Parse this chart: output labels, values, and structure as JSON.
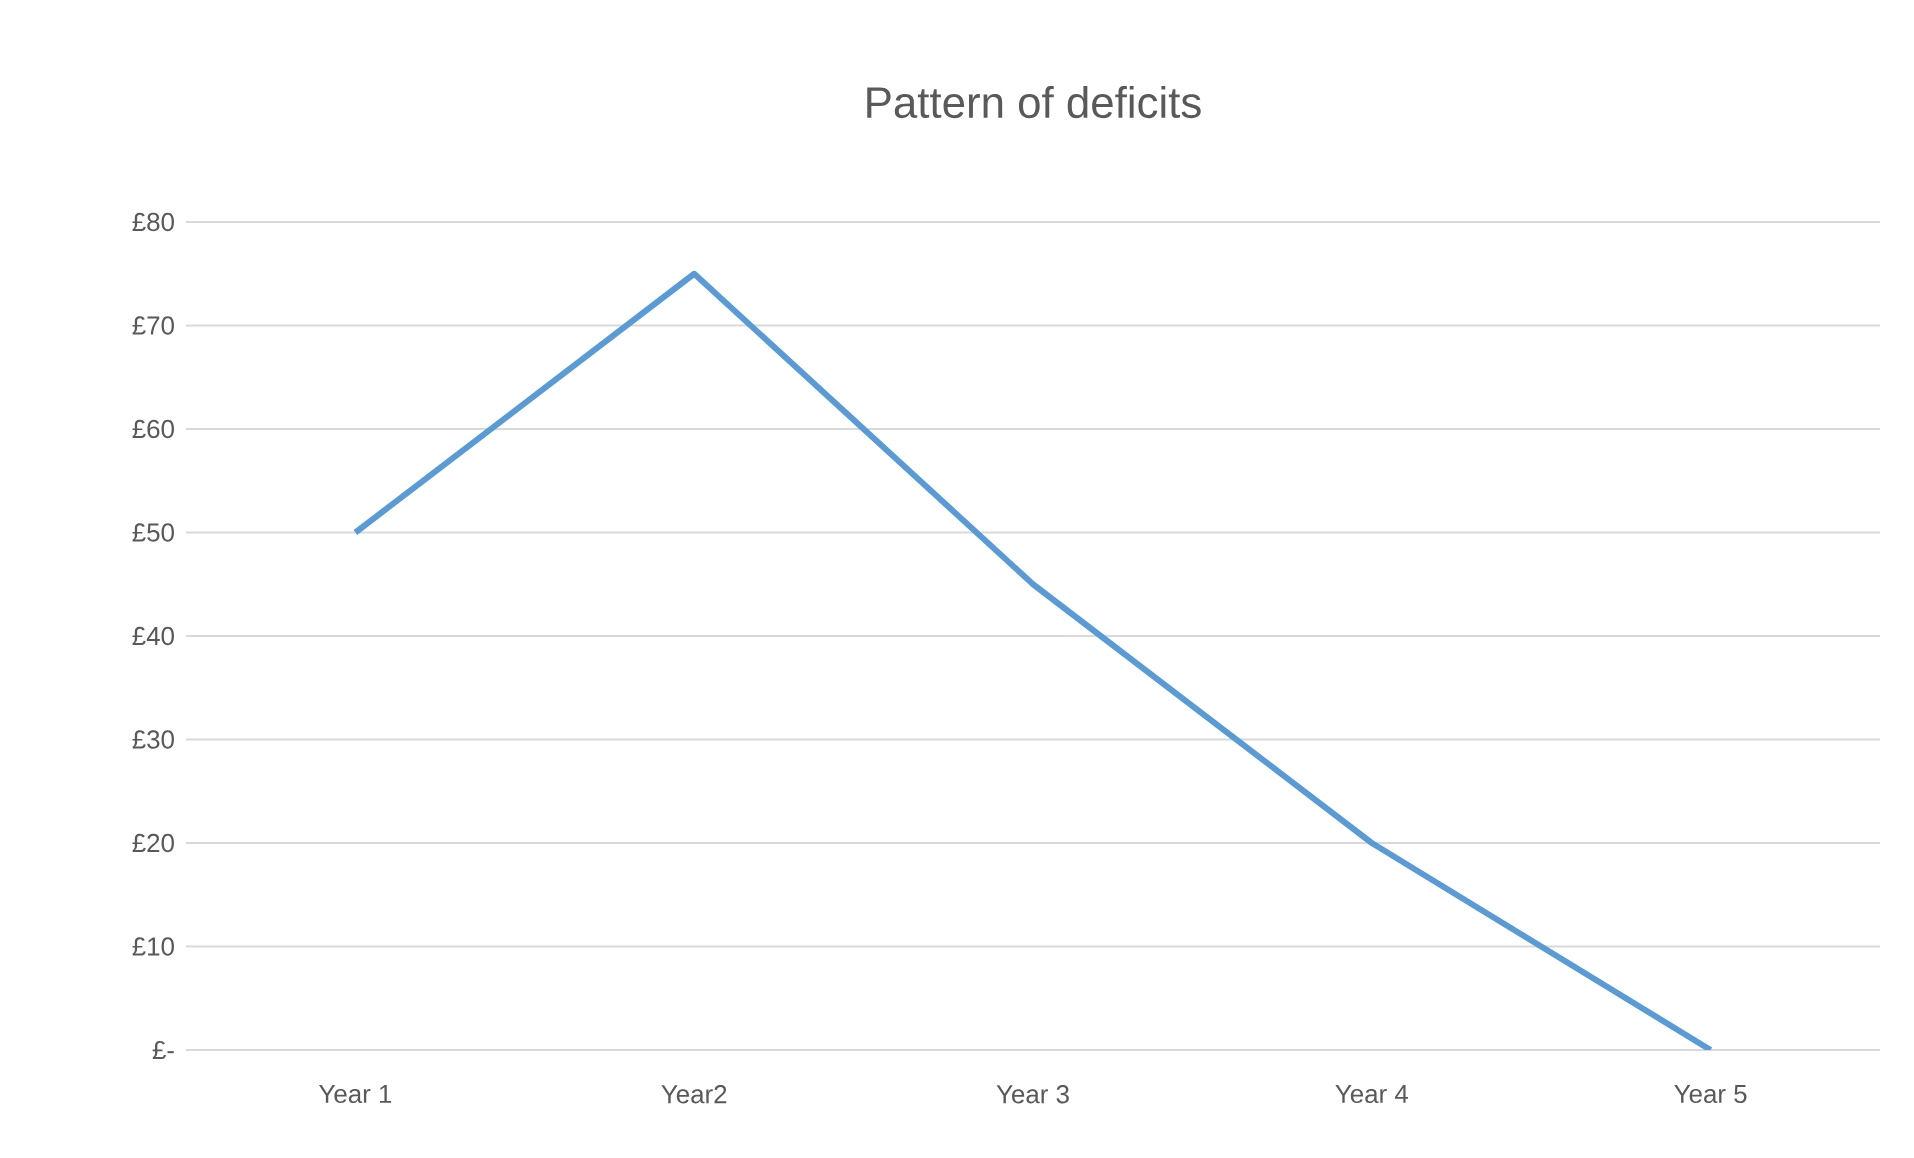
{
  "chart_data": {
    "type": "line",
    "title": "Pattern of deficits",
    "categories": [
      "Year 1",
      "Year2",
      "Year 3",
      "Year 4",
      "Year 5"
    ],
    "series": [
      {
        "color": "#5b9bd5",
        "values": [
          50,
          75,
          45,
          20,
          0
        ]
      }
    ],
    "ylim": [
      0,
      80
    ],
    "yticks": [
      {
        "value": 0,
        "label": "£-"
      },
      {
        "value": 10,
        "label": "£10"
      },
      {
        "value": 20,
        "label": "£20"
      },
      {
        "value": 30,
        "label": "£30"
      },
      {
        "value": 40,
        "label": "£40"
      },
      {
        "value": 50,
        "label": "£50"
      },
      {
        "value": 60,
        "label": "£60"
      },
      {
        "value": 70,
        "label": "£70"
      },
      {
        "value": 80,
        "label": "£80"
      }
    ],
    "grid": "y",
    "marker": "none"
  }
}
